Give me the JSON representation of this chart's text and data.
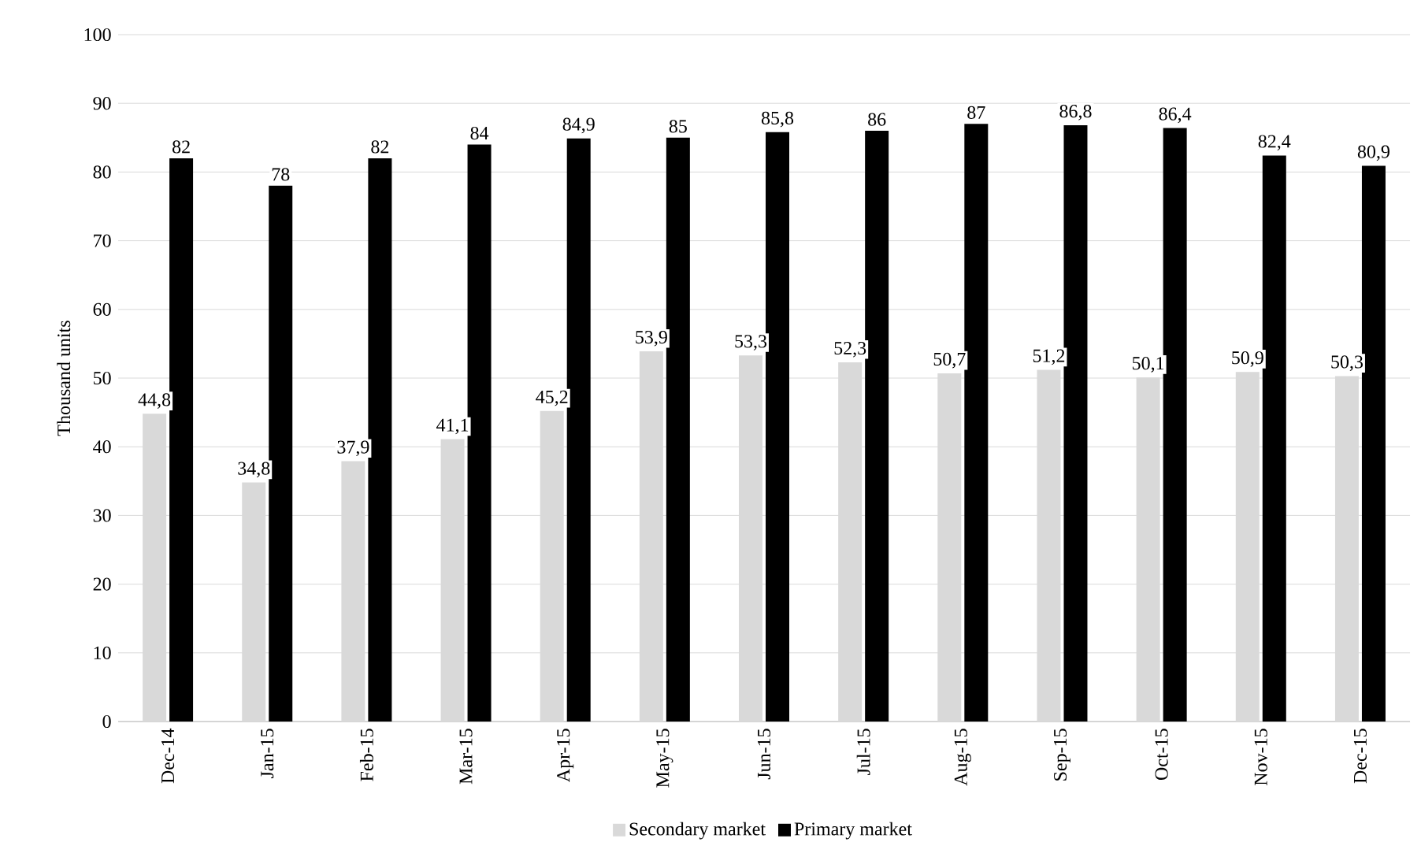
{
  "chart_data": {
    "type": "bar",
    "ylabel": "Thousand units",
    "categories": [
      "Dec-14",
      "Jan-15",
      "Feb-15",
      "Mar-15",
      "Apr-15",
      "May-15",
      "Jun-15",
      "Jul-15",
      "Aug-15",
      "Sep-15",
      "Oct-15",
      "Nov-15",
      "Dec-15"
    ],
    "series": [
      {
        "name": "Secondary market",
        "color": "#d9d9d9",
        "values": [
          44.8,
          34.8,
          37.9,
          41.1,
          45.2,
          53.9,
          53.3,
          52.3,
          50.7,
          51.2,
          50.1,
          50.9,
          50.3
        ],
        "value_labels": [
          "44,8",
          "34,8",
          "37,9",
          "41,1",
          "45,2",
          "53,9",
          "53,3",
          "52,3",
          "50,7",
          "51,2",
          "50,1",
          "50,9",
          "50,3"
        ]
      },
      {
        "name": "Primary market",
        "color": "#000000",
        "values": [
          82,
          78,
          82,
          84,
          84.9,
          85,
          85.8,
          86,
          87,
          86.8,
          86.4,
          82.4,
          80.9
        ],
        "value_labels": [
          "82",
          "78",
          "82",
          "84",
          "84,9",
          "85",
          "85,8",
          "86",
          "87",
          "86,8",
          "86,4",
          "82,4",
          "80,9"
        ]
      }
    ],
    "ylim": [
      0,
      100
    ],
    "yticks": [
      0,
      10,
      20,
      30,
      40,
      50,
      60,
      70,
      80,
      90,
      100
    ],
    "grid": "y",
    "legend": "bottom"
  }
}
